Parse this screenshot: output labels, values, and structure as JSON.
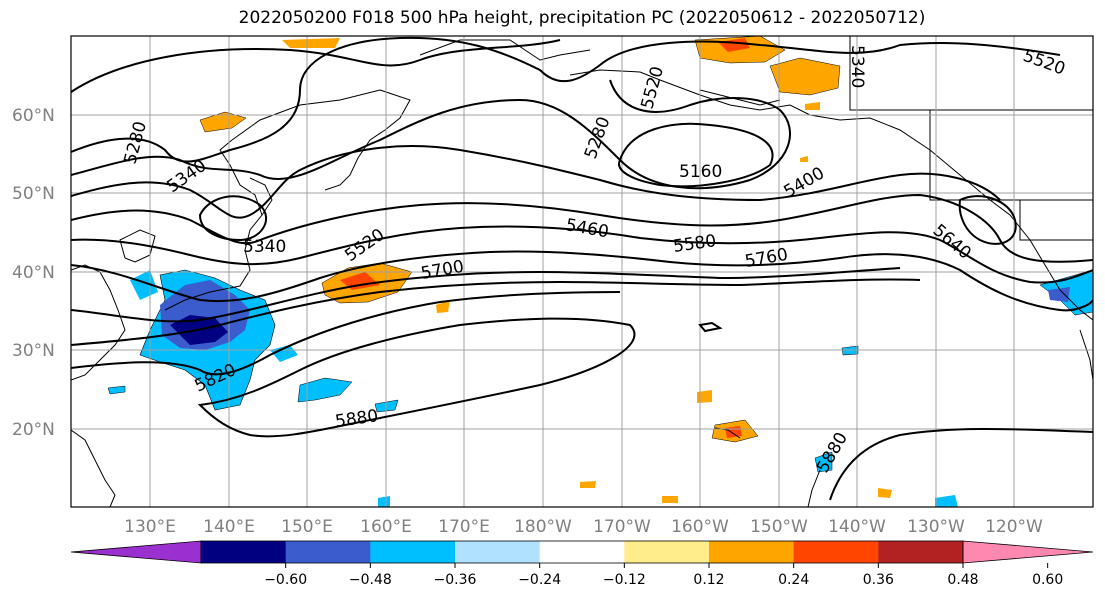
{
  "title": "2022050200 F018 500 hPa height, precipitation PC (2022050612 - 2022050712)",
  "map": {
    "lat_labels": [
      "60°N",
      "50°N",
      "40°N",
      "30°N",
      "20°N"
    ],
    "lon_labels": [
      "130°E",
      "140°E",
      "150°E",
      "160°E",
      "170°E",
      "180°W",
      "170°W",
      "160°W",
      "150°W",
      "140°W",
      "130°W",
      "120°W"
    ],
    "height_contour_labels": [
      "5280",
      "5340",
      "5340",
      "5520",
      "5520",
      "5280",
      "5160",
      "5400",
      "5460",
      "5580",
      "5700",
      "5760",
      "5640",
      "5820",
      "5880",
      "5880",
      "5520",
      "5340"
    ]
  },
  "colorbar": {
    "ticks": [
      "−0.60",
      "−0.48",
      "−0.36",
      "−0.24",
      "−0.12",
      "0.12",
      "0.24",
      "0.36",
      "0.48",
      "0.60"
    ],
    "colors": [
      "#9b30d0",
      "#000080",
      "#3a5ccc",
      "#00bfff",
      "#b0e2ff",
      "#ffffff",
      "#ffec8b",
      "#ffa500",
      "#ff4500",
      "#b22222",
      "#ff88b0"
    ]
  }
}
